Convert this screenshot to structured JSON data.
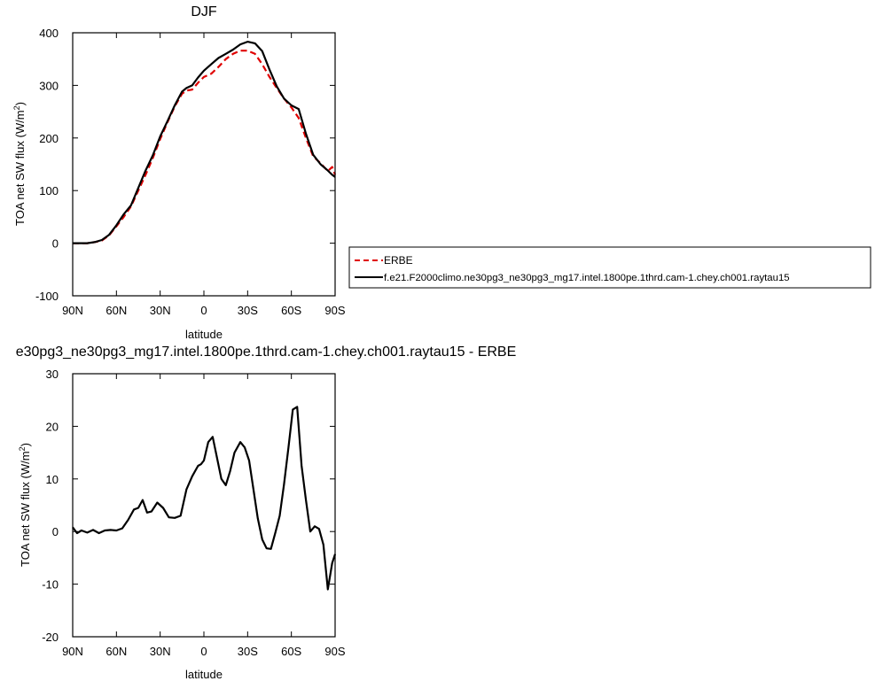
{
  "chart_data": [
    {
      "type": "line",
      "title": "DJF",
      "xlabel": "latitude",
      "ylabel": "TOA net SW flux (W/m",
      "ylabel_sup": "2",
      "ylabel_close": ")",
      "xlim": [
        90,
        -90
      ],
      "ylim": [
        -100,
        400
      ],
      "xticks": [
        90,
        60,
        30,
        0,
        -30,
        -60,
        -90
      ],
      "xtick_labels": [
        "90N",
        "60N",
        "30N",
        "0",
        "30S",
        "60S",
        "90S"
      ],
      "yticks": [
        -100,
        0,
        100,
        200,
        300,
        400
      ],
      "ytick_labels": [
        "-100",
        "0",
        "100",
        "200",
        "300",
        "400"
      ],
      "legend_position": "right",
      "series": [
        {
          "name": "ERBE",
          "color": "#e00000",
          "dash": "dashed",
          "x": [
            90,
            85,
            80,
            75,
            70,
            65,
            60,
            55,
            50,
            45,
            40,
            35,
            30,
            25,
            20,
            15,
            12,
            8,
            4,
            0,
            -5,
            -10,
            -15,
            -20,
            -25,
            -30,
            -35,
            -40,
            -45,
            -50,
            -55,
            -60,
            -65,
            -70,
            -75,
            -80,
            -85,
            -88,
            -90
          ],
          "y": [
            0,
            0,
            0,
            2,
            5,
            15,
            32,
            50,
            70,
            100,
            130,
            162,
            198,
            230,
            260,
            284,
            290,
            292,
            305,
            316,
            322,
            335,
            350,
            360,
            366,
            366,
            360,
            340,
            316,
            295,
            275,
            258,
            238,
            200,
            165,
            152,
            137,
            145,
            130
          ]
        },
        {
          "name": "f.e21.F2000climo.ne30pg3_ne30pg3_mg17.intel.1800pe.1thrd.cam-1.chey.ch001.raytau15",
          "color": "#000000",
          "dash": "solid",
          "x": [
            90,
            85,
            80,
            75,
            70,
            65,
            60,
            55,
            50,
            45,
            40,
            35,
            30,
            25,
            20,
            15,
            12,
            8,
            4,
            0,
            -5,
            -10,
            -15,
            -20,
            -25,
            -30,
            -35,
            -40,
            -45,
            -50,
            -55,
            -60,
            -65,
            -70,
            -75,
            -80,
            -85,
            -88,
            -90
          ],
          "y": [
            0,
            0,
            0,
            2,
            6,
            16,
            34,
            55,
            72,
            105,
            138,
            167,
            203,
            232,
            262,
            288,
            295,
            300,
            315,
            328,
            340,
            352,
            360,
            368,
            378,
            383,
            380,
            365,
            330,
            298,
            275,
            262,
            255,
            208,
            168,
            150,
            138,
            130,
            126
          ]
        }
      ]
    },
    {
      "type": "line",
      "title": "e30pg3_ne30pg3_mg17.intel.1800pe.1thrd.cam-1.chey.ch001.raytau15 - ERBE",
      "xlabel": "latitude",
      "ylabel": "TOA net SW flux (W/m",
      "ylabel_sup": "2",
      "ylabel_close": ")",
      "xlim": [
        90,
        -90
      ],
      "ylim": [
        -20,
        30
      ],
      "xticks": [
        90,
        60,
        30,
        0,
        -30,
        -60,
        -90
      ],
      "xtick_labels": [
        "90N",
        "60N",
        "30N",
        "0",
        "30S",
        "60S",
        "90S"
      ],
      "yticks": [
        -20,
        -10,
        0,
        10,
        20,
        30
      ],
      "ytick_labels": [
        "-20",
        "-10",
        "0",
        "10",
        "20",
        "30"
      ],
      "series": [
        {
          "color": "#000000",
          "dash": "solid",
          "x": [
            90,
            87,
            84,
            80,
            76,
            72,
            68,
            64,
            60,
            56,
            52,
            48,
            45,
            42,
            39,
            36,
            32,
            28,
            24,
            20,
            16,
            12,
            8,
            4,
            2,
            0,
            -3,
            -6,
            -9,
            -12,
            -15,
            -18,
            -21,
            -25,
            -28,
            -31,
            -34,
            -37,
            -40,
            -43,
            -46,
            -49,
            -52,
            -55,
            -58,
            -61,
            -64,
            -67,
            -70,
            -73,
            -76,
            -79,
            -82,
            -85,
            -88,
            -90
          ],
          "y": [
            0.8,
            -0.3,
            0.2,
            -0.2,
            0.3,
            -0.3,
            0.2,
            0.3,
            0.2,
            0.6,
            2.2,
            4.2,
            4.5,
            6.0,
            3.6,
            3.8,
            5.5,
            4.5,
            2.7,
            2.6,
            3.0,
            8.0,
            10.5,
            12.5,
            12.8,
            13.5,
            17.0,
            18.0,
            14.0,
            10.0,
            8.8,
            11.5,
            15.0,
            17.0,
            16.0,
            13.5,
            8.0,
            2.5,
            -1.5,
            -3.2,
            -3.3,
            -0.2,
            3.0,
            9.0,
            16.0,
            23.2,
            23.7,
            12.5,
            6.0,
            0.0,
            1.0,
            0.5,
            -2.5,
            -11.0,
            -6.0,
            -4.3
          ]
        }
      ]
    }
  ]
}
